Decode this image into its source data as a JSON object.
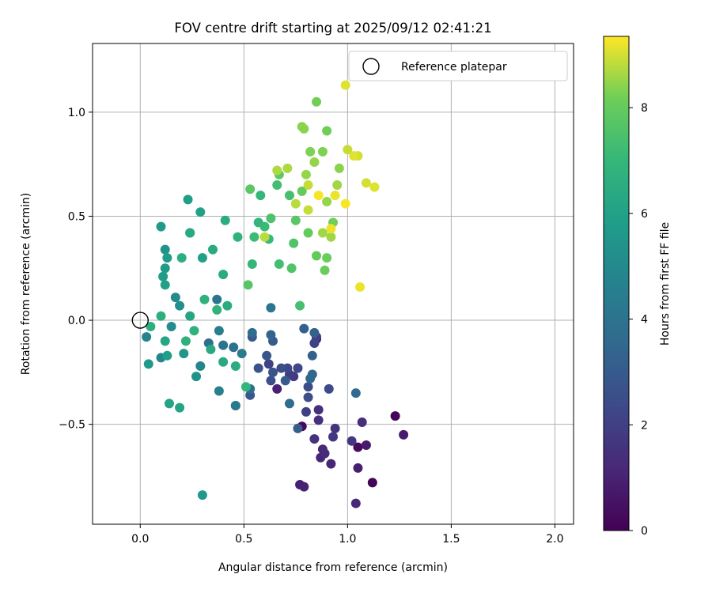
{
  "chart_data": {
    "type": "scatter",
    "title": "FOV centre drift starting at 2025/09/12 02:41:21",
    "xlabel": "Angular distance from reference (arcmin)",
    "ylabel": "Rotation from reference (arcmin)",
    "xlim": [
      -0.23,
      2.09
    ],
    "ylim": [
      -0.98,
      1.33
    ],
    "xticks": [
      0.0,
      0.5,
      1.0,
      1.5,
      2.0
    ],
    "xtick_labels": [
      "0.0",
      "0.5",
      "1.0",
      "1.5",
      "2.0"
    ],
    "yticks": [
      -0.5,
      0.0,
      0.5,
      1.0
    ],
    "ytick_labels": [
      "−0.5",
      "0.0",
      "0.5",
      "1.0"
    ],
    "grid": true,
    "legend": {
      "position": "top-right",
      "entries": [
        "Reference platepar"
      ]
    },
    "reference_point": {
      "x": 0.0,
      "y": 0.0
    },
    "colorbar": {
      "label": "Hours from first FF file",
      "range": [
        0,
        9.35
      ],
      "ticks": [
        0,
        2,
        4,
        6,
        8
      ],
      "tick_labels": [
        "0",
        "2",
        "4",
        "6",
        "8"
      ],
      "colormap": "viridis"
    },
    "points": [
      [
        1.23,
        -0.46,
        0.1
      ],
      [
        1.12,
        -0.78,
        0.1
      ],
      [
        0.78,
        -0.51,
        0.2
      ],
      [
        0.85,
        -0.09,
        0.3
      ],
      [
        1.05,
        -0.61,
        0.3
      ],
      [
        1.27,
        -0.55,
        0.8
      ],
      [
        1.09,
        -0.6,
        0.8
      ],
      [
        1.05,
        -0.71,
        0.9
      ],
      [
        0.77,
        -0.79,
        1.0
      ],
      [
        0.79,
        -0.8,
        1.0
      ],
      [
        0.66,
        -0.33,
        1.0
      ],
      [
        0.87,
        -0.66,
        1.1
      ],
      [
        0.92,
        -0.69,
        1.1
      ],
      [
        1.04,
        -0.88,
        1.2
      ],
      [
        0.88,
        -0.62,
        1.2
      ],
      [
        0.89,
        -0.64,
        1.3
      ],
      [
        1.07,
        -0.49,
        1.4
      ],
      [
        0.86,
        -0.43,
        1.4
      ],
      [
        0.86,
        -0.48,
        1.5
      ],
      [
        0.84,
        -0.57,
        1.5
      ],
      [
        0.94,
        -0.52,
        1.6
      ],
      [
        0.93,
        -0.56,
        1.7
      ],
      [
        1.02,
        -0.58,
        1.7
      ],
      [
        0.74,
        -0.27,
        1.8
      ],
      [
        0.72,
        -0.26,
        1.9
      ],
      [
        0.8,
        -0.44,
        2.0
      ],
      [
        0.85,
        -0.08,
        2.0
      ],
      [
        0.84,
        -0.11,
        2.1
      ],
      [
        0.62,
        -0.21,
        2.1
      ],
      [
        0.71,
        -0.23,
        2.2
      ],
      [
        0.76,
        -0.23,
        2.3
      ],
      [
        0.76,
        -0.23,
        2.3
      ],
      [
        0.91,
        -0.33,
        2.4
      ],
      [
        0.81,
        -0.32,
        2.4
      ],
      [
        0.81,
        -0.37,
        2.5
      ],
      [
        0.68,
        -0.23,
        2.5
      ],
      [
        0.63,
        -0.29,
        2.6
      ],
      [
        0.64,
        -0.25,
        2.7
      ],
      [
        0.57,
        -0.23,
        2.7
      ],
      [
        0.61,
        -0.17,
        2.8
      ],
      [
        0.53,
        -0.36,
        2.9
      ],
      [
        0.54,
        -0.08,
        2.9
      ],
      [
        0.64,
        -0.1,
        3.0
      ],
      [
        0.7,
        -0.29,
        3.0
      ],
      [
        0.76,
        -0.52,
        3.1
      ],
      [
        0.83,
        -0.17,
        3.2
      ],
      [
        0.79,
        -0.04,
        3.2
      ],
      [
        0.84,
        -0.06,
        3.3
      ],
      [
        0.63,
        -0.07,
        3.4
      ],
      [
        0.82,
        -0.28,
        3.5
      ],
      [
        0.83,
        -0.26,
        3.5
      ],
      [
        1.04,
        -0.35,
        3.6
      ],
      [
        0.72,
        -0.4,
        3.7
      ],
      [
        0.54,
        -0.06,
        3.7
      ],
      [
        0.53,
        -0.33,
        3.8
      ],
      [
        0.45,
        -0.13,
        3.9
      ],
      [
        0.33,
        -0.11,
        3.9
      ],
      [
        0.4,
        -0.12,
        4.0
      ],
      [
        0.37,
        0.1,
        4.1
      ],
      [
        0.63,
        0.06,
        4.1
      ],
      [
        0.46,
        -0.41,
        4.2
      ],
      [
        0.46,
        -0.41,
        4.3
      ],
      [
        0.49,
        -0.16,
        4.4
      ],
      [
        0.38,
        -0.05,
        4.5
      ],
      [
        0.38,
        -0.34,
        4.6
      ],
      [
        0.03,
        -0.08,
        4.7
      ],
      [
        0.29,
        -0.22,
        4.8
      ],
      [
        0.1,
        -0.18,
        4.9
      ],
      [
        0.17,
        0.11,
        5.0
      ],
      [
        0.15,
        -0.03,
        5.1
      ],
      [
        0.19,
        0.07,
        5.2
      ],
      [
        0.27,
        -0.27,
        5.3
      ],
      [
        0.12,
        0.34,
        5.4
      ],
      [
        0.21,
        -0.16,
        5.5
      ],
      [
        0.04,
        -0.21,
        5.6
      ],
      [
        0.3,
        -0.84,
        5.6
      ],
      [
        0.1,
        0.45,
        5.7
      ],
      [
        0.12,
        0.25,
        5.7
      ],
      [
        0.13,
        0.3,
        5.8
      ],
      [
        0.11,
        0.21,
        5.8
      ],
      [
        0.13,
        -0.17,
        5.9
      ],
      [
        0.23,
        0.58,
        5.9
      ],
      [
        0.29,
        0.52,
        6.0
      ],
      [
        0.3,
        0.3,
        6.0
      ],
      [
        0.12,
        0.17,
        6.0
      ],
      [
        0.19,
        -0.42,
        6.1
      ],
      [
        0.14,
        -0.4,
        6.1
      ],
      [
        0.24,
        0.42,
        6.1
      ],
      [
        0.24,
        0.02,
        6.2
      ],
      [
        0.12,
        -0.1,
        6.2
      ],
      [
        0.34,
        -0.14,
        6.3
      ],
      [
        0.4,
        -0.2,
        6.3
      ],
      [
        0.24,
        0.42,
        6.3
      ],
      [
        0.35,
        0.34,
        6.4
      ],
      [
        0.4,
        0.22,
        6.4
      ],
      [
        0.41,
        0.48,
        6.5
      ],
      [
        0.46,
        -0.22,
        6.5
      ],
      [
        0.42,
        0.07,
        6.5
      ],
      [
        0.05,
        -0.03,
        6.6
      ],
      [
        0.1,
        0.02,
        6.6
      ],
      [
        0.2,
        0.3,
        6.6
      ],
      [
        0.22,
        -0.1,
        6.7
      ],
      [
        0.26,
        -0.05,
        6.7
      ],
      [
        0.31,
        0.1,
        6.7
      ],
      [
        0.37,
        0.05,
        6.8
      ],
      [
        0.47,
        0.4,
        6.8
      ],
      [
        0.51,
        -0.32,
        6.9
      ],
      [
        0.57,
        0.47,
        6.9
      ],
      [
        0.58,
        0.6,
        7.0
      ],
      [
        0.54,
        0.27,
        7.0
      ],
      [
        0.62,
        0.39,
        7.1
      ],
      [
        0.6,
        0.45,
        7.1
      ],
      [
        0.55,
        0.4,
        7.2
      ],
      [
        0.66,
        0.65,
        7.3
      ],
      [
        0.67,
        0.27,
        7.3
      ],
      [
        0.72,
        0.6,
        7.4
      ],
      [
        0.77,
        0.07,
        7.4
      ],
      [
        0.63,
        0.49,
        7.5
      ],
      [
        0.74,
        0.37,
        7.6
      ],
      [
        0.73,
        0.25,
        7.6
      ],
      [
        0.52,
        0.17,
        7.7
      ],
      [
        0.53,
        0.63,
        7.8
      ],
      [
        0.75,
        0.48,
        7.8
      ],
      [
        0.67,
        0.7,
        7.9
      ],
      [
        0.78,
        0.62,
        8.0
      ],
      [
        0.85,
        0.31,
        8.0
      ],
      [
        0.81,
        0.42,
        8.0
      ],
      [
        0.89,
        0.24,
        8.1
      ],
      [
        0.9,
        0.3,
        8.1
      ],
      [
        0.93,
        0.47,
        8.2
      ],
      [
        0.85,
        1.05,
        8.2
      ],
      [
        0.9,
        0.91,
        8.2
      ],
      [
        0.82,
        0.81,
        8.3
      ],
      [
        0.88,
        0.81,
        8.3
      ],
      [
        0.96,
        0.73,
        8.4
      ],
      [
        0.78,
        0.93,
        8.4
      ],
      [
        0.79,
        0.92,
        8.4
      ],
      [
        0.84,
        0.76,
        8.5
      ],
      [
        0.8,
        0.7,
        8.5
      ],
      [
        0.9,
        0.57,
        8.5
      ],
      [
        0.92,
        0.4,
        8.6
      ],
      [
        0.95,
        0.65,
        8.6
      ],
      [
        0.88,
        0.42,
        8.6
      ],
      [
        0.66,
        0.72,
        8.7
      ],
      [
        0.71,
        0.73,
        8.7
      ],
      [
        0.6,
        0.4,
        8.8
      ],
      [
        0.75,
        0.56,
        8.8
      ],
      [
        0.81,
        0.65,
        8.9
      ],
      [
        0.81,
        0.53,
        8.9
      ],
      [
        1.0,
        0.82,
        8.9
      ],
      [
        1.05,
        0.79,
        9.0
      ],
      [
        1.09,
        0.66,
        9.0
      ],
      [
        1.13,
        0.64,
        9.1
      ],
      [
        0.99,
        1.13,
        9.1
      ],
      [
        1.03,
        0.79,
        9.1
      ],
      [
        1.06,
        0.16,
        9.2
      ],
      [
        0.92,
        0.44,
        9.2
      ],
      [
        0.94,
        0.6,
        9.2
      ],
      [
        0.99,
        0.56,
        9.3
      ],
      [
        0.86,
        0.6,
        9.3
      ]
    ]
  }
}
